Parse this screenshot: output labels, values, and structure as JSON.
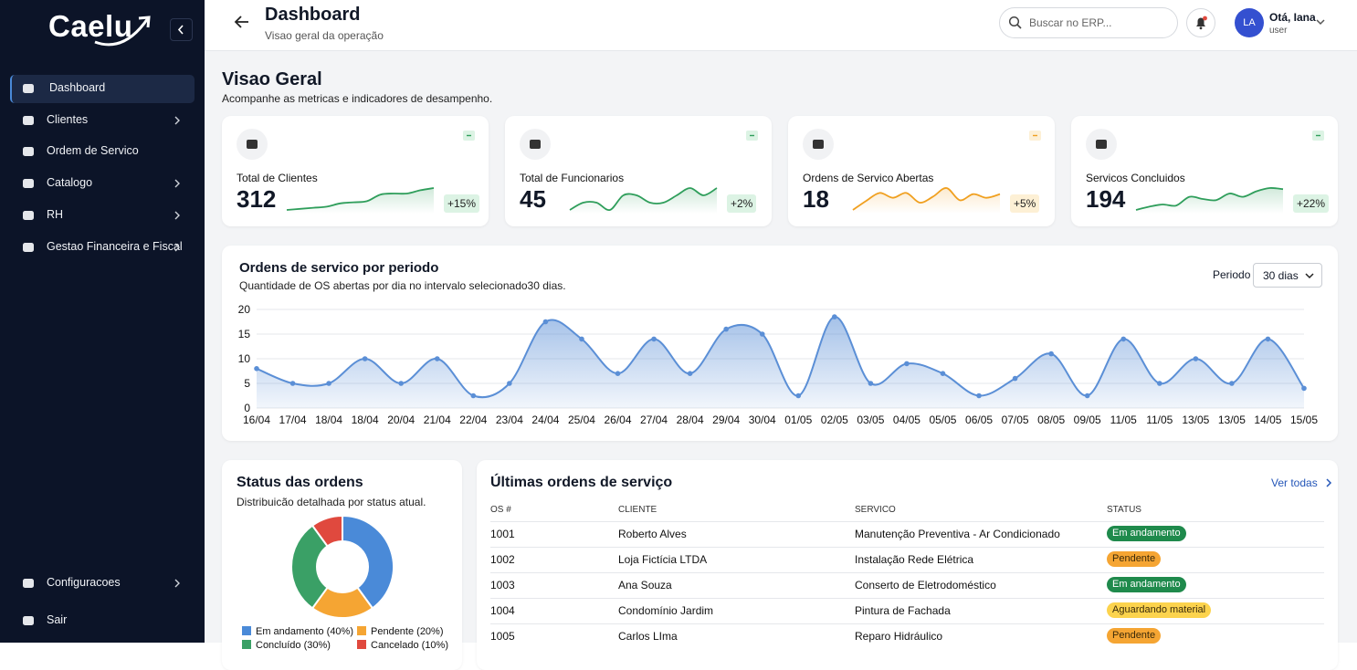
{
  "sidebar": {
    "logo": "Caelu",
    "nav": [
      {
        "label": "Dashboard",
        "active": true,
        "expandable": false
      },
      {
        "label": "Clientes",
        "active": false,
        "expandable": true
      },
      {
        "label": "Ordem de Servico",
        "active": false,
        "expandable": false
      },
      {
        "label": "Catalogo",
        "active": false,
        "expandable": true
      },
      {
        "label": "RH",
        "active": false,
        "expandable": true
      },
      {
        "label": "Gestao Financeira e Fiscal",
        "active": false,
        "expandable": true
      }
    ],
    "bottom_nav": [
      {
        "label": "Configuracoes",
        "active": false,
        "expandable": true
      },
      {
        "label": "Sair",
        "active": false,
        "expandable": false
      }
    ]
  },
  "header": {
    "title": "Dashboard",
    "subtitle": "Visao geral da operação",
    "search_placeholder": "Buscar no ERP...",
    "user_initials": "LA",
    "user_name": "Otá, Iana",
    "user_role": "user"
  },
  "overview": {
    "title": "Visao Geral",
    "subtitle": "Acompanhe as metricas e indicadores de desampenho."
  },
  "kpis": [
    {
      "label": "Total de Clientes",
      "value": "312",
      "change": "+15%",
      "color": "#2f9e5b",
      "badge_bg": "#dcf3e4",
      "spark": [
        2,
        2.2,
        2.4,
        2.6,
        3.2,
        3.4,
        3.6,
        4.8,
        5,
        5,
        5.6,
        6
      ]
    },
    {
      "label": "Total de Funcionarios",
      "value": "45",
      "change": "+2%",
      "color": "#2f9e5b",
      "badge_bg": "#dcf3e4",
      "spark": [
        5,
        5.1,
        5.1,
        5,
        5.2,
        5.2,
        5.1,
        5.1,
        5.2,
        5.3,
        5.2,
        5.3
      ]
    },
    {
      "label": "Ordens de Servico Abertas",
      "value": "18",
      "change": "+5%",
      "color": "#f0a020",
      "badge_bg": "#fdf0d5",
      "spark": [
        2,
        3.5,
        4.8,
        4,
        4.8,
        3.2,
        4.2,
        5.6,
        3.6,
        4.6,
        4,
        4.6
      ]
    },
    {
      "label": "Servicos Concluidos",
      "value": "194",
      "change": "+22%",
      "color": "#2f9e5b",
      "badge_bg": "#dcf3e4",
      "spark": [
        2,
        2.6,
        3,
        2.8,
        4.4,
        4,
        3.8,
        5,
        4.4,
        5.4,
        6,
        5.8
      ]
    }
  ],
  "chart_data": {
    "type": "area",
    "title": "Ordens de servico por periodo",
    "subtitle": "Quantidade de OS abertas por dia no intervalo selecionado30 dias.",
    "period_label": "Periodo",
    "period_value": "30 dias",
    "categories": [
      "16/04",
      "17/04",
      "18/04",
      "18/04",
      "20/04",
      "21/04",
      "22/04",
      "23/04",
      "24/04",
      "25/04",
      "26/04",
      "27/04",
      "28/04",
      "29/04",
      "30/04",
      "01/05",
      "02/05",
      "03/05",
      "04/05",
      "05/05",
      "06/05",
      "07/05",
      "08/05",
      "09/05",
      "11/05",
      "11/05",
      "13/05",
      "13/05",
      "14/05",
      "15/05"
    ],
    "values": [
      8,
      5,
      5,
      10,
      5,
      10,
      2.5,
      5,
      17.5,
      14,
      7,
      14,
      7,
      16,
      15,
      2.5,
      18.5,
      5,
      9,
      7,
      2.5,
      6,
      11,
      2.5,
      14,
      5,
      10,
      5,
      14,
      4
    ],
    "color": "#5b8fd6",
    "ylim": [
      0,
      20
    ],
    "yticks": [
      0,
      5,
      10,
      15,
      20
    ],
    "grid": true
  },
  "status_chart": {
    "type": "donut",
    "title": "Status das ordens",
    "subtitle": "Distribuicão detalhada por status atual.",
    "labels": [
      "Em andamento (40%)",
      "Pendente (20%)",
      "Concluído (30%)",
      "Cancelado (10%)"
    ],
    "values": [
      40,
      20,
      30,
      10
    ],
    "colors": [
      "#4a8ad8",
      "#f5a533",
      "#3aa066",
      "#e0493e"
    ]
  },
  "table": {
    "title": "Últimas ordens de serviço",
    "link": "Ver todas",
    "columns": [
      "OS #",
      "CLIENTE",
      "SERVICO",
      "STATUS"
    ],
    "rows": [
      {
        "os": "1001",
        "cliente": "Roberto Alves",
        "servico": "Manutenção Preventiva - Ar Condicionado",
        "status": "Em andamento",
        "status_bg": "#1f8a4c",
        "status_fg": "#ffffff"
      },
      {
        "os": "1002",
        "cliente": "Loja Fictícia LTDA",
        "servico": "Instalação Rede Elétrica",
        "status": "Pendente",
        "status_bg": "#f5a533",
        "status_fg": "#3a2a0a"
      },
      {
        "os": "1003",
        "cliente": "Ana Souza",
        "servico": "Conserto de Eletrodoméstico",
        "status": "Em andamento",
        "status_bg": "#1f8a4c",
        "status_fg": "#ffffff"
      },
      {
        "os": "1004",
        "cliente": "Condomínio Jardim",
        "servico": "Pintura de Fachada",
        "status": "Aguardando material",
        "status_bg": "#fcd34d",
        "status_fg": "#3a2a0a"
      },
      {
        "os": "1005",
        "cliente": "Carlos LIma",
        "servico": "Reparo Hidráulico",
        "status": "Pendente",
        "status_bg": "#f5a533",
        "status_fg": "#3a2a0a"
      }
    ]
  }
}
